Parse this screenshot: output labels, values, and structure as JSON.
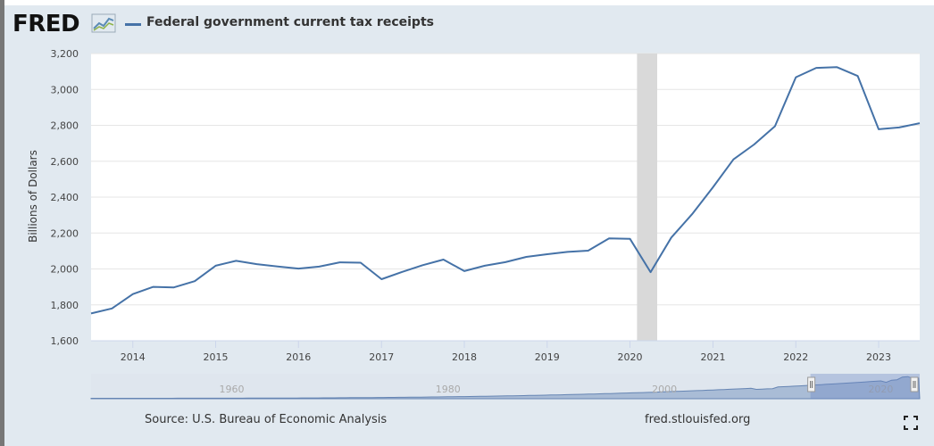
{
  "header": {
    "logo_text": "FRED",
    "logo_icon": "line-graph-icon",
    "legend_label": "Federal government current tax receipts"
  },
  "footer": {
    "source": "Source: U.S. Bureau of Economic Analysis",
    "site": "fred.stlouisfed.org",
    "fullscreen_icon": "expand-icon"
  },
  "colors": {
    "series": "#4572a7",
    "recession": "#d9d9d9",
    "background": "#e1e9f0",
    "plot_bg": "#ffffff"
  },
  "chart_data": {
    "type": "line",
    "title": "",
    "xlabel": "",
    "ylabel": "Billions of Dollars",
    "ylim": [
      1600,
      3200
    ],
    "y_ticks": [
      1600,
      1800,
      2000,
      2200,
      2400,
      2600,
      2800,
      3000,
      3200
    ],
    "y_tick_labels": [
      "1,600",
      "1,800",
      "2,000",
      "2,200",
      "2,400",
      "2,600",
      "2,800",
      "3,000",
      "3,200"
    ],
    "xlim": [
      "2013-07-01",
      "2023-07-01"
    ],
    "x_ticks": [
      "2014",
      "2015",
      "2016",
      "2017",
      "2018",
      "2019",
      "2020",
      "2021",
      "2022",
      "2023"
    ],
    "grid": true,
    "legend": "top-left",
    "recession_shading": [
      [
        "2020-02-01",
        "2020-04-30"
      ]
    ],
    "series": [
      {
        "name": "Federal government current tax receipts",
        "color": "#4572a7",
        "points": [
          [
            "2013-07-01",
            1752
          ],
          [
            "2013-10-01",
            1780
          ],
          [
            "2014-01-01",
            1860
          ],
          [
            "2014-04-01",
            1900
          ],
          [
            "2014-07-01",
            1897
          ],
          [
            "2014-10-01",
            1932
          ],
          [
            "2015-01-01",
            2018
          ],
          [
            "2015-04-01",
            2045
          ],
          [
            "2015-07-01",
            2027
          ],
          [
            "2015-10-01",
            2014
          ],
          [
            "2016-01-01",
            2002
          ],
          [
            "2016-04-01",
            2013
          ],
          [
            "2016-07-01",
            2037
          ],
          [
            "2016-10-01",
            2035
          ],
          [
            "2017-01-01",
            1943
          ],
          [
            "2017-04-01",
            1983
          ],
          [
            "2017-07-01",
            2021
          ],
          [
            "2017-10-01",
            2052
          ],
          [
            "2018-01-01",
            1988
          ],
          [
            "2018-04-01",
            2018
          ],
          [
            "2018-07-01",
            2038
          ],
          [
            "2018-10-01",
            2067
          ],
          [
            "2019-01-01",
            2082
          ],
          [
            "2019-04-01",
            2095
          ],
          [
            "2019-07-01",
            2102
          ],
          [
            "2019-10-01",
            2170
          ],
          [
            "2020-01-01",
            2168
          ],
          [
            "2020-04-01",
            1982
          ],
          [
            "2020-07-01",
            2175
          ],
          [
            "2020-10-01",
            2305
          ],
          [
            "2021-01-01",
            2455
          ],
          [
            "2021-04-01",
            2610
          ],
          [
            "2021-07-01",
            2693
          ],
          [
            "2021-10-01",
            2795
          ],
          [
            "2022-01-01",
            3068
          ],
          [
            "2022-04-01",
            3120
          ],
          [
            "2022-07-01",
            3124
          ],
          [
            "2022-10-01",
            3075
          ],
          [
            "2023-01-01",
            2778
          ],
          [
            "2023-04-01",
            2788
          ],
          [
            "2023-07-01",
            2812
          ]
        ]
      }
    ],
    "navigator": {
      "tick_labels": [
        "1960",
        "1980",
        "2000",
        "2020"
      ],
      "range_start": "1947",
      "range_end": "2023"
    }
  }
}
